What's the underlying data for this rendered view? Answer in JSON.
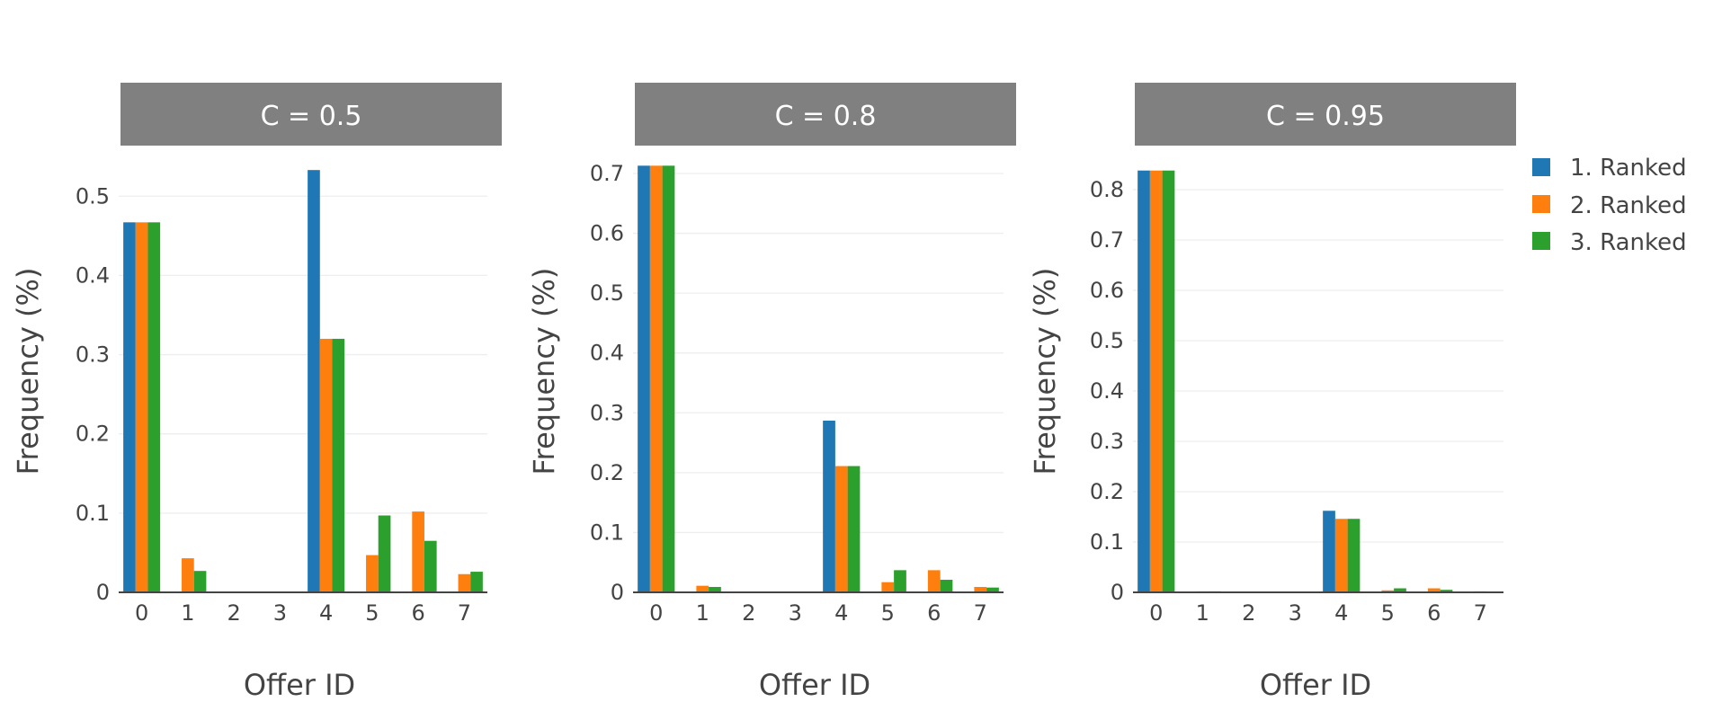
{
  "chart_data": [
    {
      "type": "bar",
      "title": "C = 0.5",
      "xlabel": "Offer ID",
      "ylabel": "Frequency (%)",
      "categories": [
        "0",
        "1",
        "2",
        "3",
        "4",
        "5",
        "6",
        "7"
      ],
      "ylim": [
        0,
        0.54
      ],
      "yticks": [
        0,
        0.1,
        0.2,
        0.3,
        0.4,
        0.5
      ],
      "ytick_labels": [
        "0",
        "0.1",
        "0.2",
        "0.3",
        "0.4",
        "0.5"
      ],
      "grid": true,
      "series": [
        {
          "name": "1. Ranked",
          "values": [
            0.467,
            0,
            0,
            0,
            0.533,
            0,
            0,
            0
          ]
        },
        {
          "name": "2. Ranked",
          "values": [
            0.467,
            0.043,
            0,
            0,
            0.32,
            0.047,
            0.102,
            0.023
          ]
        },
        {
          "name": "3. Ranked",
          "values": [
            0.467,
            0.027,
            0,
            0,
            0.32,
            0.097,
            0.065,
            0.026
          ]
        }
      ]
    },
    {
      "type": "bar",
      "title": "C = 0.8",
      "xlabel": "Offer ID",
      "ylabel": "Frequency (%)",
      "categories": [
        "0",
        "1",
        "2",
        "3",
        "4",
        "5",
        "6",
        "7"
      ],
      "ylim": [
        0,
        0.715
      ],
      "yticks": [
        0,
        0.1,
        0.2,
        0.3,
        0.4,
        0.5,
        0.6,
        0.7
      ],
      "ytick_labels": [
        "0",
        "0.1",
        "0.2",
        "0.3",
        "0.4",
        "0.5",
        "0.6",
        "0.7"
      ],
      "grid": true,
      "series": [
        {
          "name": "1. Ranked",
          "values": [
            0.713,
            0,
            0,
            0,
            0.287,
            0,
            0,
            0
          ]
        },
        {
          "name": "2. Ranked",
          "values": [
            0.713,
            0.011,
            0,
            0,
            0.211,
            0.017,
            0.037,
            0.009
          ]
        },
        {
          "name": "3. Ranked",
          "values": [
            0.713,
            0.009,
            0,
            0,
            0.211,
            0.037,
            0.021,
            0.008
          ]
        }
      ]
    },
    {
      "type": "bar",
      "title": "C = 0.95",
      "xlabel": "Offer ID",
      "ylabel": "Frequency (%)",
      "categories": [
        "0",
        "1",
        "2",
        "3",
        "4",
        "5",
        "6",
        "7"
      ],
      "ylim": [
        0,
        0.85
      ],
      "yticks": [
        0,
        0.1,
        0.2,
        0.3,
        0.4,
        0.5,
        0.6,
        0.7,
        0.8
      ],
      "ytick_labels": [
        "0",
        "0.1",
        "0.2",
        "0.3",
        "0.4",
        "0.5",
        "0.6",
        "0.7",
        "0.8"
      ],
      "grid": true,
      "series": [
        {
          "name": "1. Ranked",
          "values": [
            0.838,
            0,
            0,
            0,
            0.162,
            0,
            0,
            0
          ]
        },
        {
          "name": "2. Ranked",
          "values": [
            0.838,
            0.002,
            0,
            0,
            0.146,
            0.004,
            0.008,
            0.002
          ]
        },
        {
          "name": "3. Ranked",
          "values": [
            0.838,
            0.002,
            0,
            0,
            0.146,
            0.008,
            0.005,
            0.001
          ]
        }
      ]
    }
  ],
  "legend": {
    "placement": "right",
    "items": [
      {
        "label": "1. Ranked",
        "color": "#1f77b4"
      },
      {
        "label": "2. Ranked",
        "color": "#ff7f0e"
      },
      {
        "label": "3. Ranked",
        "color": "#2ca02c"
      }
    ]
  }
}
